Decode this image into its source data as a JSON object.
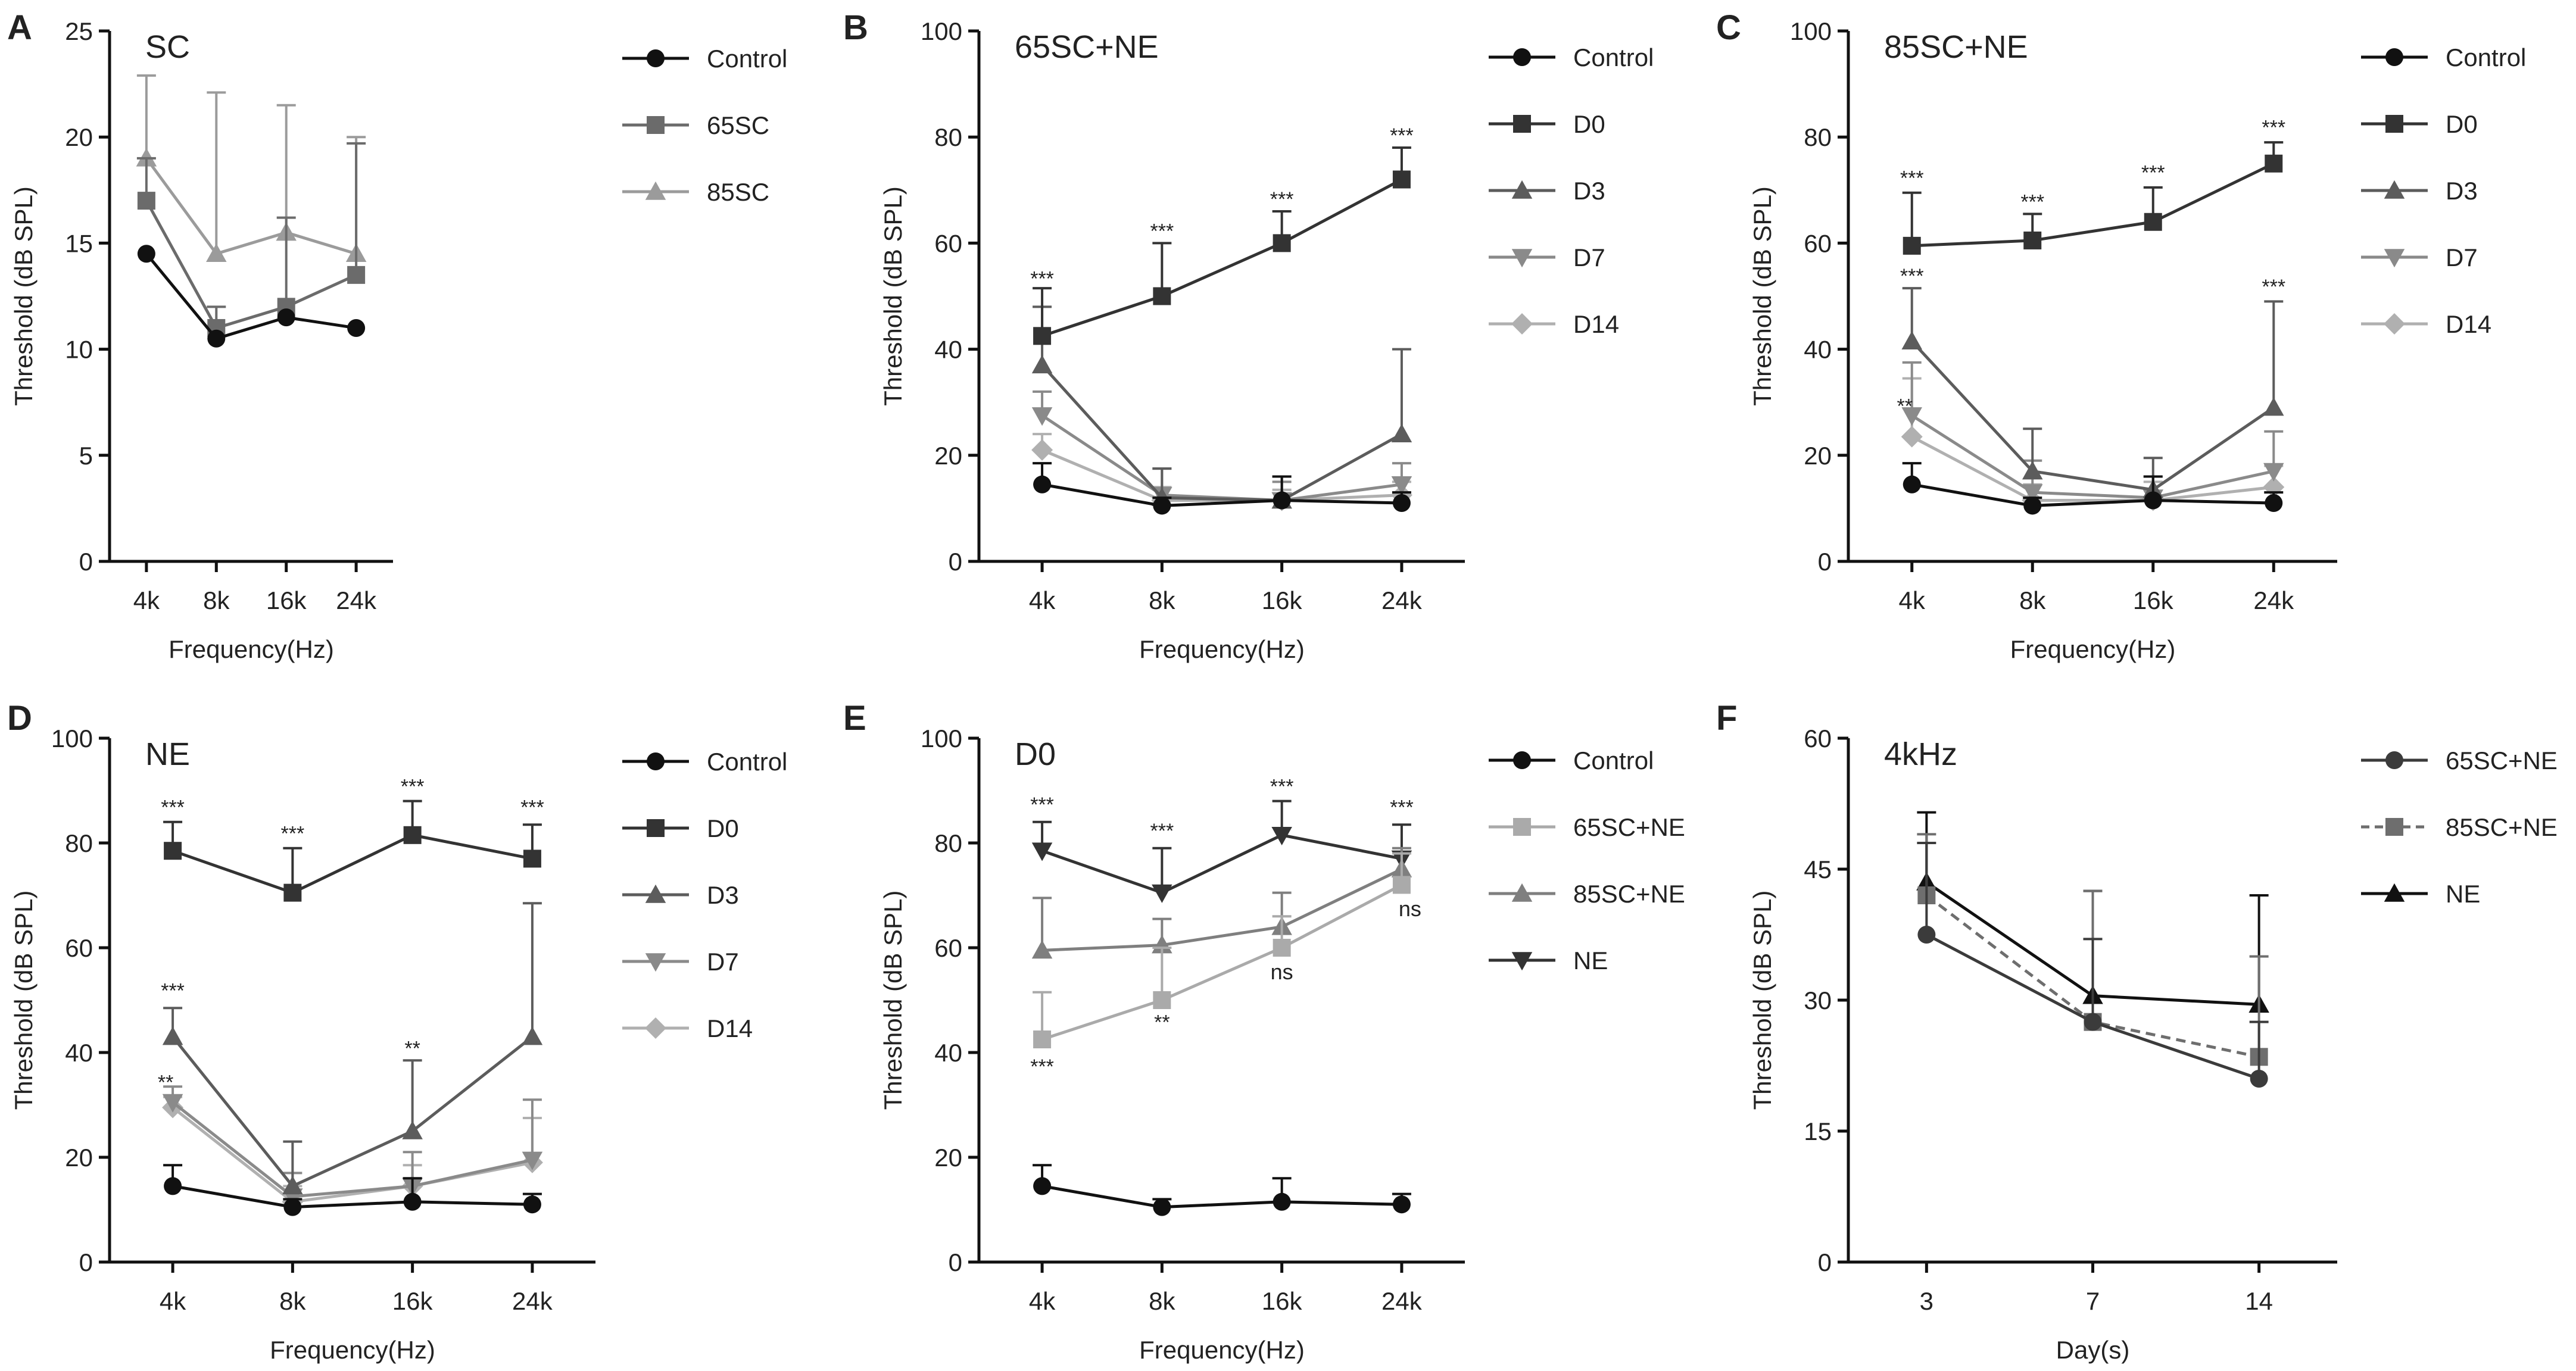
{
  "figure": {
    "description_free": true
  },
  "chart_data": [
    {
      "panel": "A",
      "type": "line",
      "title": "SC",
      "xlabel": "Frequency(Hz)",
      "ylabel": "Threshold (dB SPL)",
      "categories": [
        "4k",
        "8k",
        "16k",
        "24k"
      ],
      "ylim": [
        0,
        25
      ],
      "yticks": [
        0,
        5,
        10,
        15,
        20,
        25
      ],
      "series": [
        {
          "name": "Control",
          "marker": "circle",
          "color": "#111111",
          "values": [
            14.5,
            10.5,
            11.5,
            11.0
          ],
          "err": [
            0,
            0,
            0,
            0
          ]
        },
        {
          "name": "65SC",
          "marker": "square",
          "color": "#6b6b6b",
          "values": [
            17.0,
            11.0,
            12.0,
            13.5
          ],
          "err": [
            2.0,
            1.0,
            4.2,
            6.2
          ]
        },
        {
          "name": "85SC",
          "marker": "triangle-up",
          "color": "#9b9b9b",
          "values": [
            19.0,
            14.5,
            15.5,
            14.5
          ],
          "err": [
            3.9,
            7.6,
            6.0,
            5.5
          ]
        }
      ],
      "annotations": []
    },
    {
      "panel": "B",
      "type": "line",
      "title": "65SC+NE",
      "xlabel": "Frequency(Hz)",
      "ylabel": "Threshold (dB SPL)",
      "categories": [
        "4k",
        "8k",
        "16k",
        "24k"
      ],
      "ylim": [
        0,
        100
      ],
      "yticks": [
        0,
        20,
        40,
        60,
        80,
        100
      ],
      "series": [
        {
          "name": "Control",
          "marker": "circle",
          "color": "#111111",
          "values": [
            14.5,
            10.5,
            11.5,
            11.0
          ],
          "err": [
            4.0,
            1.5,
            4.5,
            2.0
          ]
        },
        {
          "name": "D0",
          "marker": "square",
          "color": "#333333",
          "values": [
            42.5,
            50.0,
            60.0,
            72.0
          ],
          "err": [
            9.0,
            10.0,
            6.0,
            6.0
          ]
        },
        {
          "name": "D3",
          "marker": "triangle-up",
          "color": "#5c5c5c",
          "values": [
            37.0,
            12.0,
            11.5,
            24.0
          ],
          "err": [
            11.0,
            5.5,
            4.5,
            16.0
          ]
        },
        {
          "name": "D7",
          "marker": "triangle-down",
          "color": "#8a8a8a",
          "values": [
            27.5,
            12.5,
            11.5,
            14.5
          ],
          "err": [
            4.5,
            5.0,
            3.5,
            4.0
          ]
        },
        {
          "name": "D14",
          "marker": "diamond",
          "color": "#b0b0b0",
          "values": [
            21.0,
            11.5,
            11.5,
            12.5
          ],
          "err": [
            3.0,
            2.5,
            2.0,
            2.5
          ]
        }
      ],
      "annotations": [
        {
          "text": "***",
          "cat": 0,
          "y": 52.0
        },
        {
          "text": "***",
          "cat": 1,
          "y": 61.0
        },
        {
          "text": "***",
          "cat": 2,
          "y": 67.0
        },
        {
          "text": "***",
          "cat": 3,
          "y": 79.0
        }
      ]
    },
    {
      "panel": "C",
      "type": "line",
      "title": "85SC+NE",
      "xlabel": "Frequency(Hz)",
      "ylabel": "Threshold (dB SPL)",
      "categories": [
        "4k",
        "8k",
        "16k",
        "24k"
      ],
      "ylim": [
        0,
        100
      ],
      "yticks": [
        0,
        20,
        40,
        60,
        80,
        100
      ],
      "series": [
        {
          "name": "Control",
          "marker": "circle",
          "color": "#111111",
          "values": [
            14.5,
            10.5,
            11.5,
            11.0
          ],
          "err": [
            4.0,
            1.5,
            4.5,
            2.0
          ]
        },
        {
          "name": "D0",
          "marker": "square",
          "color": "#333333",
          "values": [
            59.5,
            60.5,
            64.0,
            75.0
          ],
          "err": [
            10.0,
            5.0,
            6.5,
            4.0
          ]
        },
        {
          "name": "D3",
          "marker": "triangle-up",
          "color": "#5c5c5c",
          "values": [
            41.5,
            17.0,
            13.5,
            29.0
          ],
          "err": [
            10.0,
            8.0,
            6.0,
            20.0
          ]
        },
        {
          "name": "D7",
          "marker": "triangle-down",
          "color": "#8a8a8a",
          "values": [
            27.5,
            13.0,
            12.0,
            17.0
          ],
          "err": [
            10.0,
            6.0,
            4.0,
            7.5
          ]
        },
        {
          "name": "D14",
          "marker": "diamond",
          "color": "#b0b0b0",
          "values": [
            23.5,
            11.5,
            11.5,
            14.0
          ],
          "err": [
            11.0,
            3.0,
            3.5,
            4.0
          ]
        }
      ],
      "annotations": [
        {
          "text": "***",
          "cat": 0,
          "y": 71.0
        },
        {
          "text": "***",
          "cat": 1,
          "y": 66.5
        },
        {
          "text": "***",
          "cat": 2,
          "y": 72.0
        },
        {
          "text": "***",
          "cat": 3,
          "y": 80.5
        },
        {
          "text": "***",
          "cat": 0,
          "y": 52.5
        },
        {
          "text": "**",
          "cat": 0,
          "y": 28.0,
          "dx": -12
        },
        {
          "text": "***",
          "cat": 3,
          "y": 50.5
        }
      ]
    },
    {
      "panel": "D",
      "type": "line",
      "title": "NE",
      "xlabel": "Frequency(Hz)",
      "ylabel": "Threshold (dB SPL)",
      "categories": [
        "4k",
        "8k",
        "16k",
        "24k"
      ],
      "ylim": [
        0,
        100
      ],
      "yticks": [
        0,
        20,
        40,
        60,
        80,
        100
      ],
      "series": [
        {
          "name": "Control",
          "marker": "circle",
          "color": "#111111",
          "values": [
            14.5,
            10.5,
            11.5,
            11.0
          ],
          "err": [
            4.0,
            1.5,
            4.5,
            2.0
          ]
        },
        {
          "name": "D0",
          "marker": "square",
          "color": "#333333",
          "values": [
            78.5,
            70.5,
            81.5,
            77.0
          ],
          "err": [
            5.5,
            8.5,
            6.5,
            6.5
          ]
        },
        {
          "name": "D3",
          "marker": "triangle-up",
          "color": "#5c5c5c",
          "values": [
            43.0,
            14.5,
            25.0,
            43.0
          ],
          "err": [
            5.5,
            8.5,
            13.5,
            25.5
          ]
        },
        {
          "name": "D7",
          "marker": "triangle-down",
          "color": "#8a8a8a",
          "values": [
            30.5,
            12.5,
            14.5,
            19.5
          ],
          "err": [
            3.0,
            4.5,
            6.5,
            11.5
          ]
        },
        {
          "name": "D14",
          "marker": "diamond",
          "color": "#b0b0b0",
          "values": [
            29.5,
            11.5,
            14.5,
            19.0
          ],
          "err": [
            2.0,
            3.0,
            4.0,
            8.5
          ]
        }
      ],
      "annotations": [
        {
          "text": "***",
          "cat": 0,
          "y": 85.5
        },
        {
          "text": "***",
          "cat": 1,
          "y": 80.5
        },
        {
          "text": "***",
          "cat": 2,
          "y": 89.5
        },
        {
          "text": "***",
          "cat": 3,
          "y": 85.5
        },
        {
          "text": "***",
          "cat": 0,
          "y": 50.5
        },
        {
          "text": "**",
          "cat": 0,
          "y": 33.0,
          "dx": -12
        },
        {
          "text": "**",
          "cat": 2,
          "y": 39.5
        }
      ]
    },
    {
      "panel": "E",
      "type": "line",
      "title": "D0",
      "xlabel": "Frequency(Hz)",
      "ylabel": "Threshold (dB SPL)",
      "categories": [
        "4k",
        "8k",
        "16k",
        "24k"
      ],
      "ylim": [
        0,
        100
      ],
      "yticks": [
        0,
        20,
        40,
        60,
        80,
        100
      ],
      "series": [
        {
          "name": "Control",
          "marker": "circle",
          "color": "#111111",
          "values": [
            14.5,
            10.5,
            11.5,
            11.0
          ],
          "err": [
            4.0,
            1.5,
            4.5,
            2.0
          ]
        },
        {
          "name": "65SC+NE",
          "marker": "square",
          "color": "#aaaaaa",
          "values": [
            42.5,
            50.0,
            60.0,
            72.0
          ],
          "err": [
            9.0,
            10.0,
            6.0,
            6.0
          ]
        },
        {
          "name": "85SC+NE",
          "marker": "triangle-up",
          "color": "#7f7f7f",
          "values": [
            59.5,
            60.5,
            64.0,
            75.0
          ],
          "err": [
            10.0,
            5.0,
            6.5,
            4.0
          ]
        },
        {
          "name": "NE",
          "marker": "triangle-down",
          "color": "#333333",
          "values": [
            78.5,
            70.5,
            81.5,
            77.0
          ],
          "err": [
            5.5,
            8.5,
            6.5,
            6.5
          ]
        }
      ],
      "annotations": [
        {
          "text": "***",
          "cat": 0,
          "y": 86.0
        },
        {
          "text": "***",
          "cat": 1,
          "y": 81.0
        },
        {
          "text": "***",
          "cat": 2,
          "y": 89.5
        },
        {
          "text": "***",
          "cat": 3,
          "y": 85.5
        },
        {
          "text": "***",
          "cat": 0,
          "y": 36.0
        },
        {
          "text": "**",
          "cat": 1,
          "y": 44.5
        },
        {
          "text": "ns",
          "cat": 2,
          "y": 54.0,
          "serif": true
        },
        {
          "text": "ns",
          "cat": 3,
          "y": 66.0,
          "serif": true,
          "dx": 14
        }
      ]
    },
    {
      "panel": "F",
      "type": "line",
      "title": "4kHz",
      "xlabel": "Day(s)",
      "ylabel": "Threshold (dB SPL)",
      "categories": [
        "3",
        "7",
        "14"
      ],
      "ylim": [
        0,
        60
      ],
      "yticks": [
        0,
        15,
        30,
        45,
        60
      ],
      "series": [
        {
          "name": "65SC+NE",
          "marker": "circle",
          "color": "#3b3b3b",
          "values": [
            37.5,
            27.5,
            21.0
          ],
          "err": [
            10.5,
            9.5,
            6.5
          ],
          "dash": false
        },
        {
          "name": "85SC+NE",
          "marker": "square",
          "color": "#6e6e6e",
          "values": [
            42.0,
            27.5,
            23.5
          ],
          "err": [
            7.0,
            15.0,
            11.5
          ],
          "dash": true
        },
        {
          "name": "NE",
          "marker": "triangle-up",
          "color": "#111111",
          "values": [
            43.5,
            30.5,
            29.5
          ],
          "err": [
            8.0,
            12.0,
            12.5
          ],
          "dash": false
        }
      ],
      "annotations": []
    }
  ]
}
